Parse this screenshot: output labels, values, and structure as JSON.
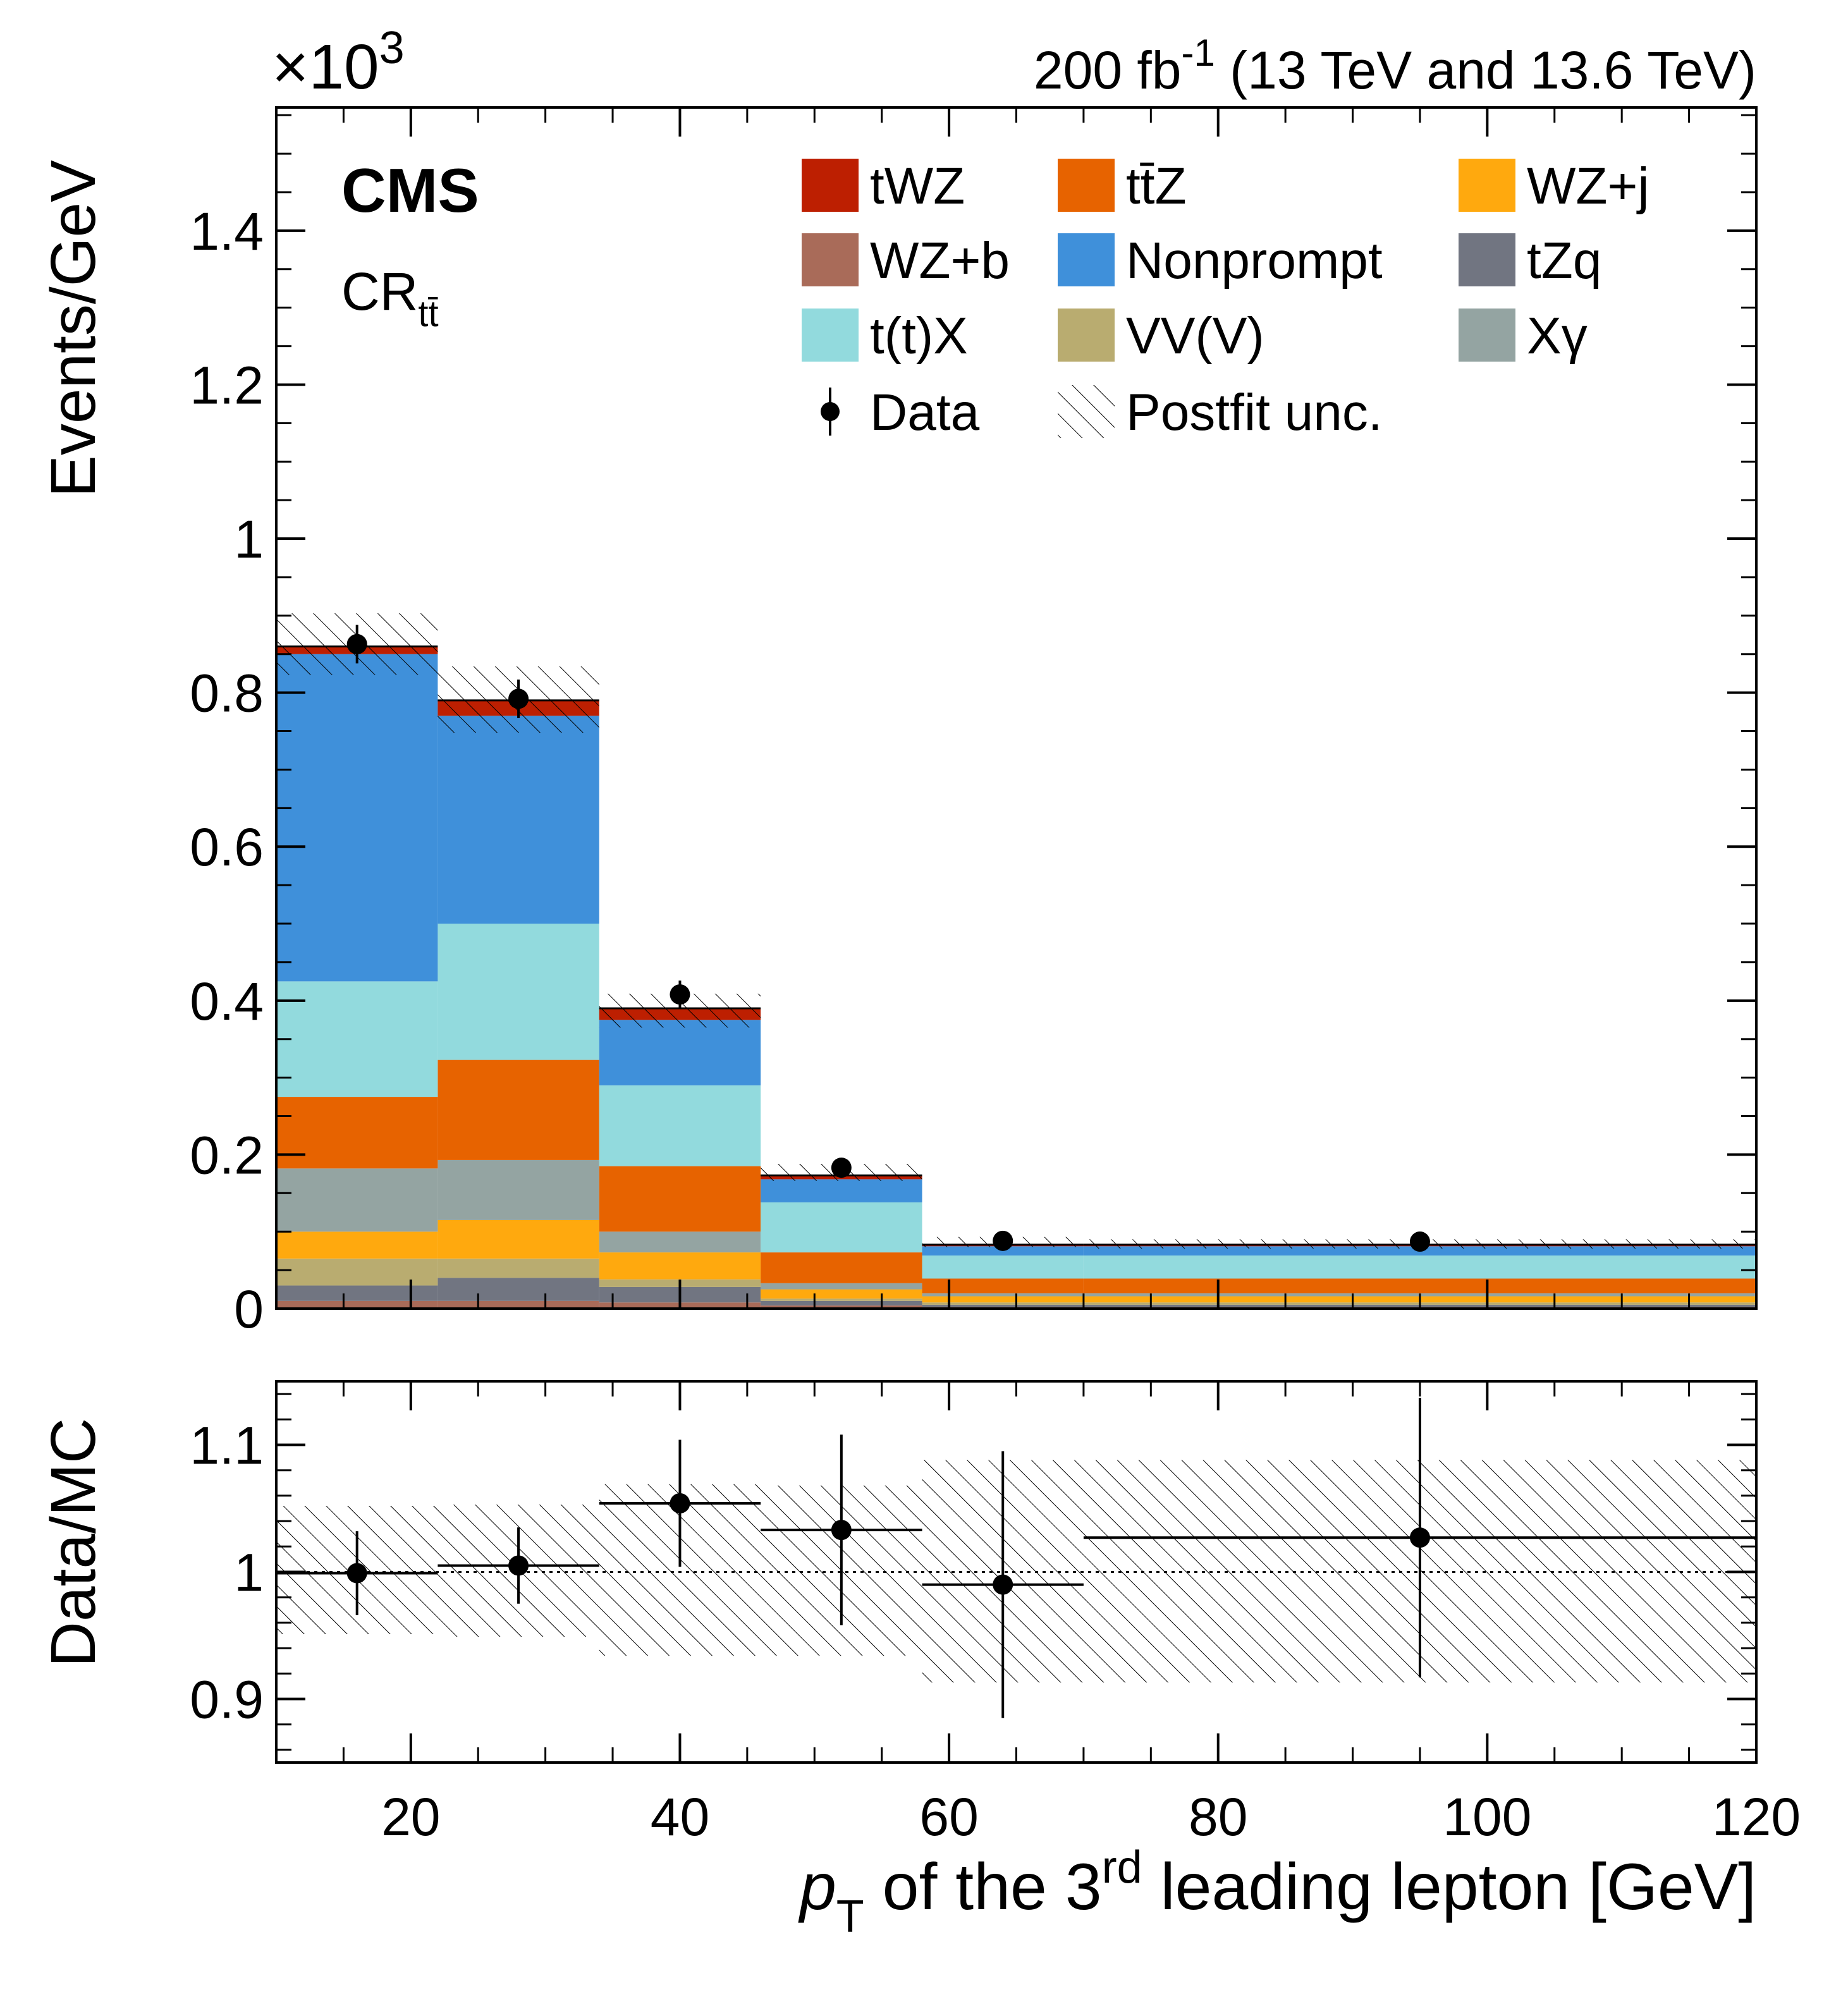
{
  "chart_data": [
    {
      "type": "bar",
      "stacked": true,
      "panel": "main",
      "lumi_label": "200 fb",
      "lumi_sup": "-1",
      "lumi_rest": " (13 TeV and 13.6 TeV)",
      "experiment": "CMS",
      "region_main": "CR",
      "region_sub": "tt̄",
      "scale_base": "×10",
      "scale_exp": "3",
      "ylabel": "Events/GeV",
      "ylim": [
        0,
        1.56
      ],
      "yticks": [
        "0",
        "0.2",
        "0.4",
        "0.6",
        "0.8",
        "1",
        "1.2",
        "1.4"
      ],
      "xlim": [
        10,
        120
      ],
      "bin_edges": [
        10,
        22,
        34,
        46,
        58,
        70,
        120
      ],
      "bin_centers": [
        16,
        28,
        40,
        52,
        64,
        95
      ],
      "series": [
        {
          "name": "WZ+b",
          "color": "#a96b59",
          "values": [
            0.01,
            0.01,
            0.008,
            0.004,
            0.002,
            0.002
          ]
        },
        {
          "name": "tZq",
          "color": "#717581",
          "values": [
            0.02,
            0.03,
            0.02,
            0.006,
            0.003,
            0.003
          ]
        },
        {
          "name": "VV(V)",
          "color": "#b9ac70",
          "values": [
            0.035,
            0.025,
            0.01,
            0.003,
            0.003,
            0.003
          ]
        },
        {
          "name": "WZ+j",
          "color": "#ffa90e",
          "values": [
            0.035,
            0.05,
            0.035,
            0.012,
            0.008,
            0.008
          ]
        },
        {
          "name": "Xγ",
          "color": "#94a4a2",
          "values": [
            0.082,
            0.078,
            0.027,
            0.008,
            0.004,
            0.004
          ]
        },
        {
          "name": "tt̄Z",
          "color": "#e76300",
          "values": [
            0.093,
            0.13,
            0.085,
            0.04,
            0.019,
            0.019
          ]
        },
        {
          "name": "t(t)X",
          "color": "#92dadd",
          "values": [
            0.15,
            0.177,
            0.105,
            0.065,
            0.03,
            0.03
          ]
        },
        {
          "name": "Nonprompt",
          "color": "#3f90da",
          "values": [
            0.425,
            0.27,
            0.085,
            0.03,
            0.012,
            0.012
          ]
        },
        {
          "name": "tWZ",
          "color": "#bd1f01",
          "values": [
            0.01,
            0.02,
            0.015,
            0.005,
            0.002,
            0.002
          ]
        }
      ],
      "legend": [
        {
          "label": "tWZ",
          "color": "#bd1f01"
        },
        {
          "label": "tt̄Z",
          "color": "#e76300"
        },
        {
          "label": "WZ+j",
          "color": "#ffa90e"
        },
        {
          "label": "WZ+b",
          "color": "#a96b59"
        },
        {
          "label": "Nonprompt",
          "color": "#3f90da"
        },
        {
          "label": "tZq",
          "color": "#717581"
        },
        {
          "label": "t(t)X",
          "color": "#92dadd"
        },
        {
          "label": "VV(V)",
          "color": "#b9ac70"
        },
        {
          "label": "Xγ",
          "color": "#94a4a2"
        },
        {
          "label": "Data",
          "color": "#000000"
        },
        {
          "label": "Postfit unc.",
          "color": "#000000"
        }
      ],
      "data_points": [
        {
          "x": 16,
          "y": 0.863,
          "err": 0.025
        },
        {
          "x": 28,
          "y": 0.792,
          "err": 0.025
        },
        {
          "x": 40,
          "y": 0.408,
          "err": 0.018
        },
        {
          "x": 52,
          "y": 0.183,
          "err": 0.012
        },
        {
          "x": 64,
          "y": 0.088,
          "err": 0.008
        },
        {
          "x": 95,
          "y": 0.087,
          "err": 0.004
        }
      ],
      "postfit_unc": [
        {
          "lo": 0.823,
          "hi": 0.903
        },
        {
          "lo": 0.748,
          "hi": 0.834
        },
        {
          "lo": 0.365,
          "hi": 0.409
        },
        {
          "lo": 0.166,
          "hi": 0.188
        },
        {
          "lo": 0.08,
          "hi": 0.093
        },
        {
          "lo": 0.078,
          "hi": 0.09
        }
      ]
    },
    {
      "type": "scatter",
      "panel": "ratio",
      "ylabel": "Data/MC",
      "xlabel_main": "p",
      "xlabel_sub": "T",
      "xlabel_mid": " of the 3",
      "xlabel_sup": "rd",
      "xlabel_rest": " leading lepton [GeV]",
      "ylim": [
        0.85,
        1.15
      ],
      "yticks": [
        "0.9",
        "1",
        "1.1"
      ],
      "xticks": [
        "20",
        "40",
        "60",
        "80",
        "100",
        "120"
      ],
      "xlim": [
        10,
        120
      ],
      "reference_line": 1,
      "bin_edges": [
        10,
        22,
        34,
        46,
        58,
        70,
        120
      ],
      "points": [
        {
          "x": 16,
          "y": 0.999,
          "err_lo": 0.033,
          "err_hi": 0.033
        },
        {
          "x": 28,
          "y": 1.005,
          "err_lo": 0.03,
          "err_hi": 0.03
        },
        {
          "x": 40,
          "y": 1.054,
          "err_lo": 0.05,
          "err_hi": 0.05
        },
        {
          "x": 52,
          "y": 1.033,
          "err_lo": 0.075,
          "err_hi": 0.075
        },
        {
          "x": 64,
          "y": 0.99,
          "err_lo": 0.105,
          "err_hi": 0.105
        },
        {
          "x": 95,
          "y": 1.027,
          "err_lo": 0.11,
          "err_hi": 0.11
        }
      ],
      "unc_band": [
        {
          "lo": 0.951,
          "hi": 1.052
        },
        {
          "lo": 0.949,
          "hi": 1.053
        },
        {
          "lo": 0.934,
          "hi": 1.069
        },
        {
          "lo": 0.934,
          "hi": 1.068
        },
        {
          "lo": 0.913,
          "hi": 1.088
        },
        {
          "lo": 0.913,
          "hi": 1.088
        }
      ]
    }
  ]
}
